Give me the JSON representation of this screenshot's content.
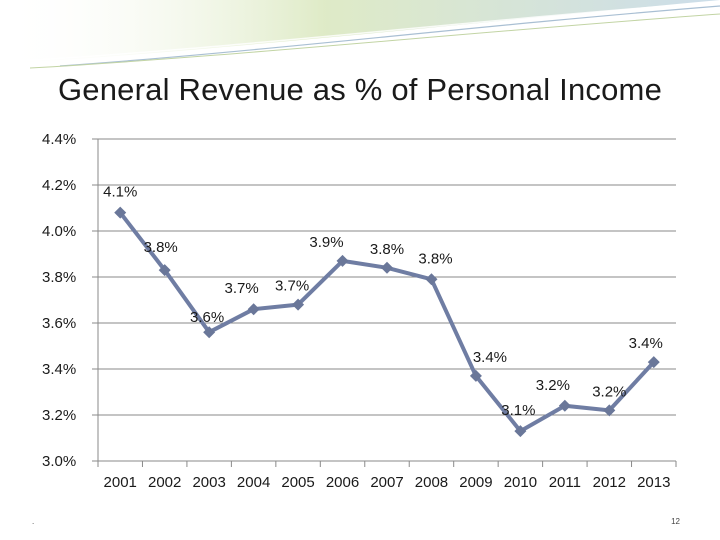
{
  "slide": {
    "title": "General Revenue as % of Personal Income",
    "page_number": "12",
    "corner_mark": "."
  },
  "colors": {
    "series": "#6f7da3",
    "marker": "#6a7799",
    "banner_green": "#c9dca0",
    "banner_blue": "#b9cde0"
  },
  "chart_data": {
    "type": "line",
    "title": "General Revenue as % of Personal Income",
    "xlabel": "",
    "ylabel": "",
    "ylim": [
      3.0,
      4.4
    ],
    "yticks": [
      3.0,
      3.2,
      3.4,
      3.6,
      3.8,
      4.0,
      4.2,
      4.4
    ],
    "ytick_labels": [
      "3.0%",
      "3.2%",
      "3.4%",
      "3.6%",
      "3.8%",
      "4.0%",
      "4.2%",
      "4.4%"
    ],
    "grid": true,
    "categories": [
      "2001",
      "2002",
      "2003",
      "2004",
      "2005",
      "2006",
      "2007",
      "2008",
      "2009",
      "2010",
      "2011",
      "2012",
      "2013"
    ],
    "series": [
      {
        "name": "General Revenue as % of Personal Income",
        "values": [
          4.08,
          3.83,
          3.56,
          3.66,
          3.68,
          3.87,
          3.84,
          3.79,
          3.37,
          3.13,
          3.24,
          3.22,
          3.43
        ],
        "labels": [
          "4.1%",
          "3.8%",
          "3.6%",
          "3.7%",
          "3.7%",
          "3.9%",
          "3.8%",
          "3.8%",
          "3.4%",
          "3.1%",
          "3.2%",
          "3.2%",
          "3.4%"
        ]
      }
    ]
  }
}
